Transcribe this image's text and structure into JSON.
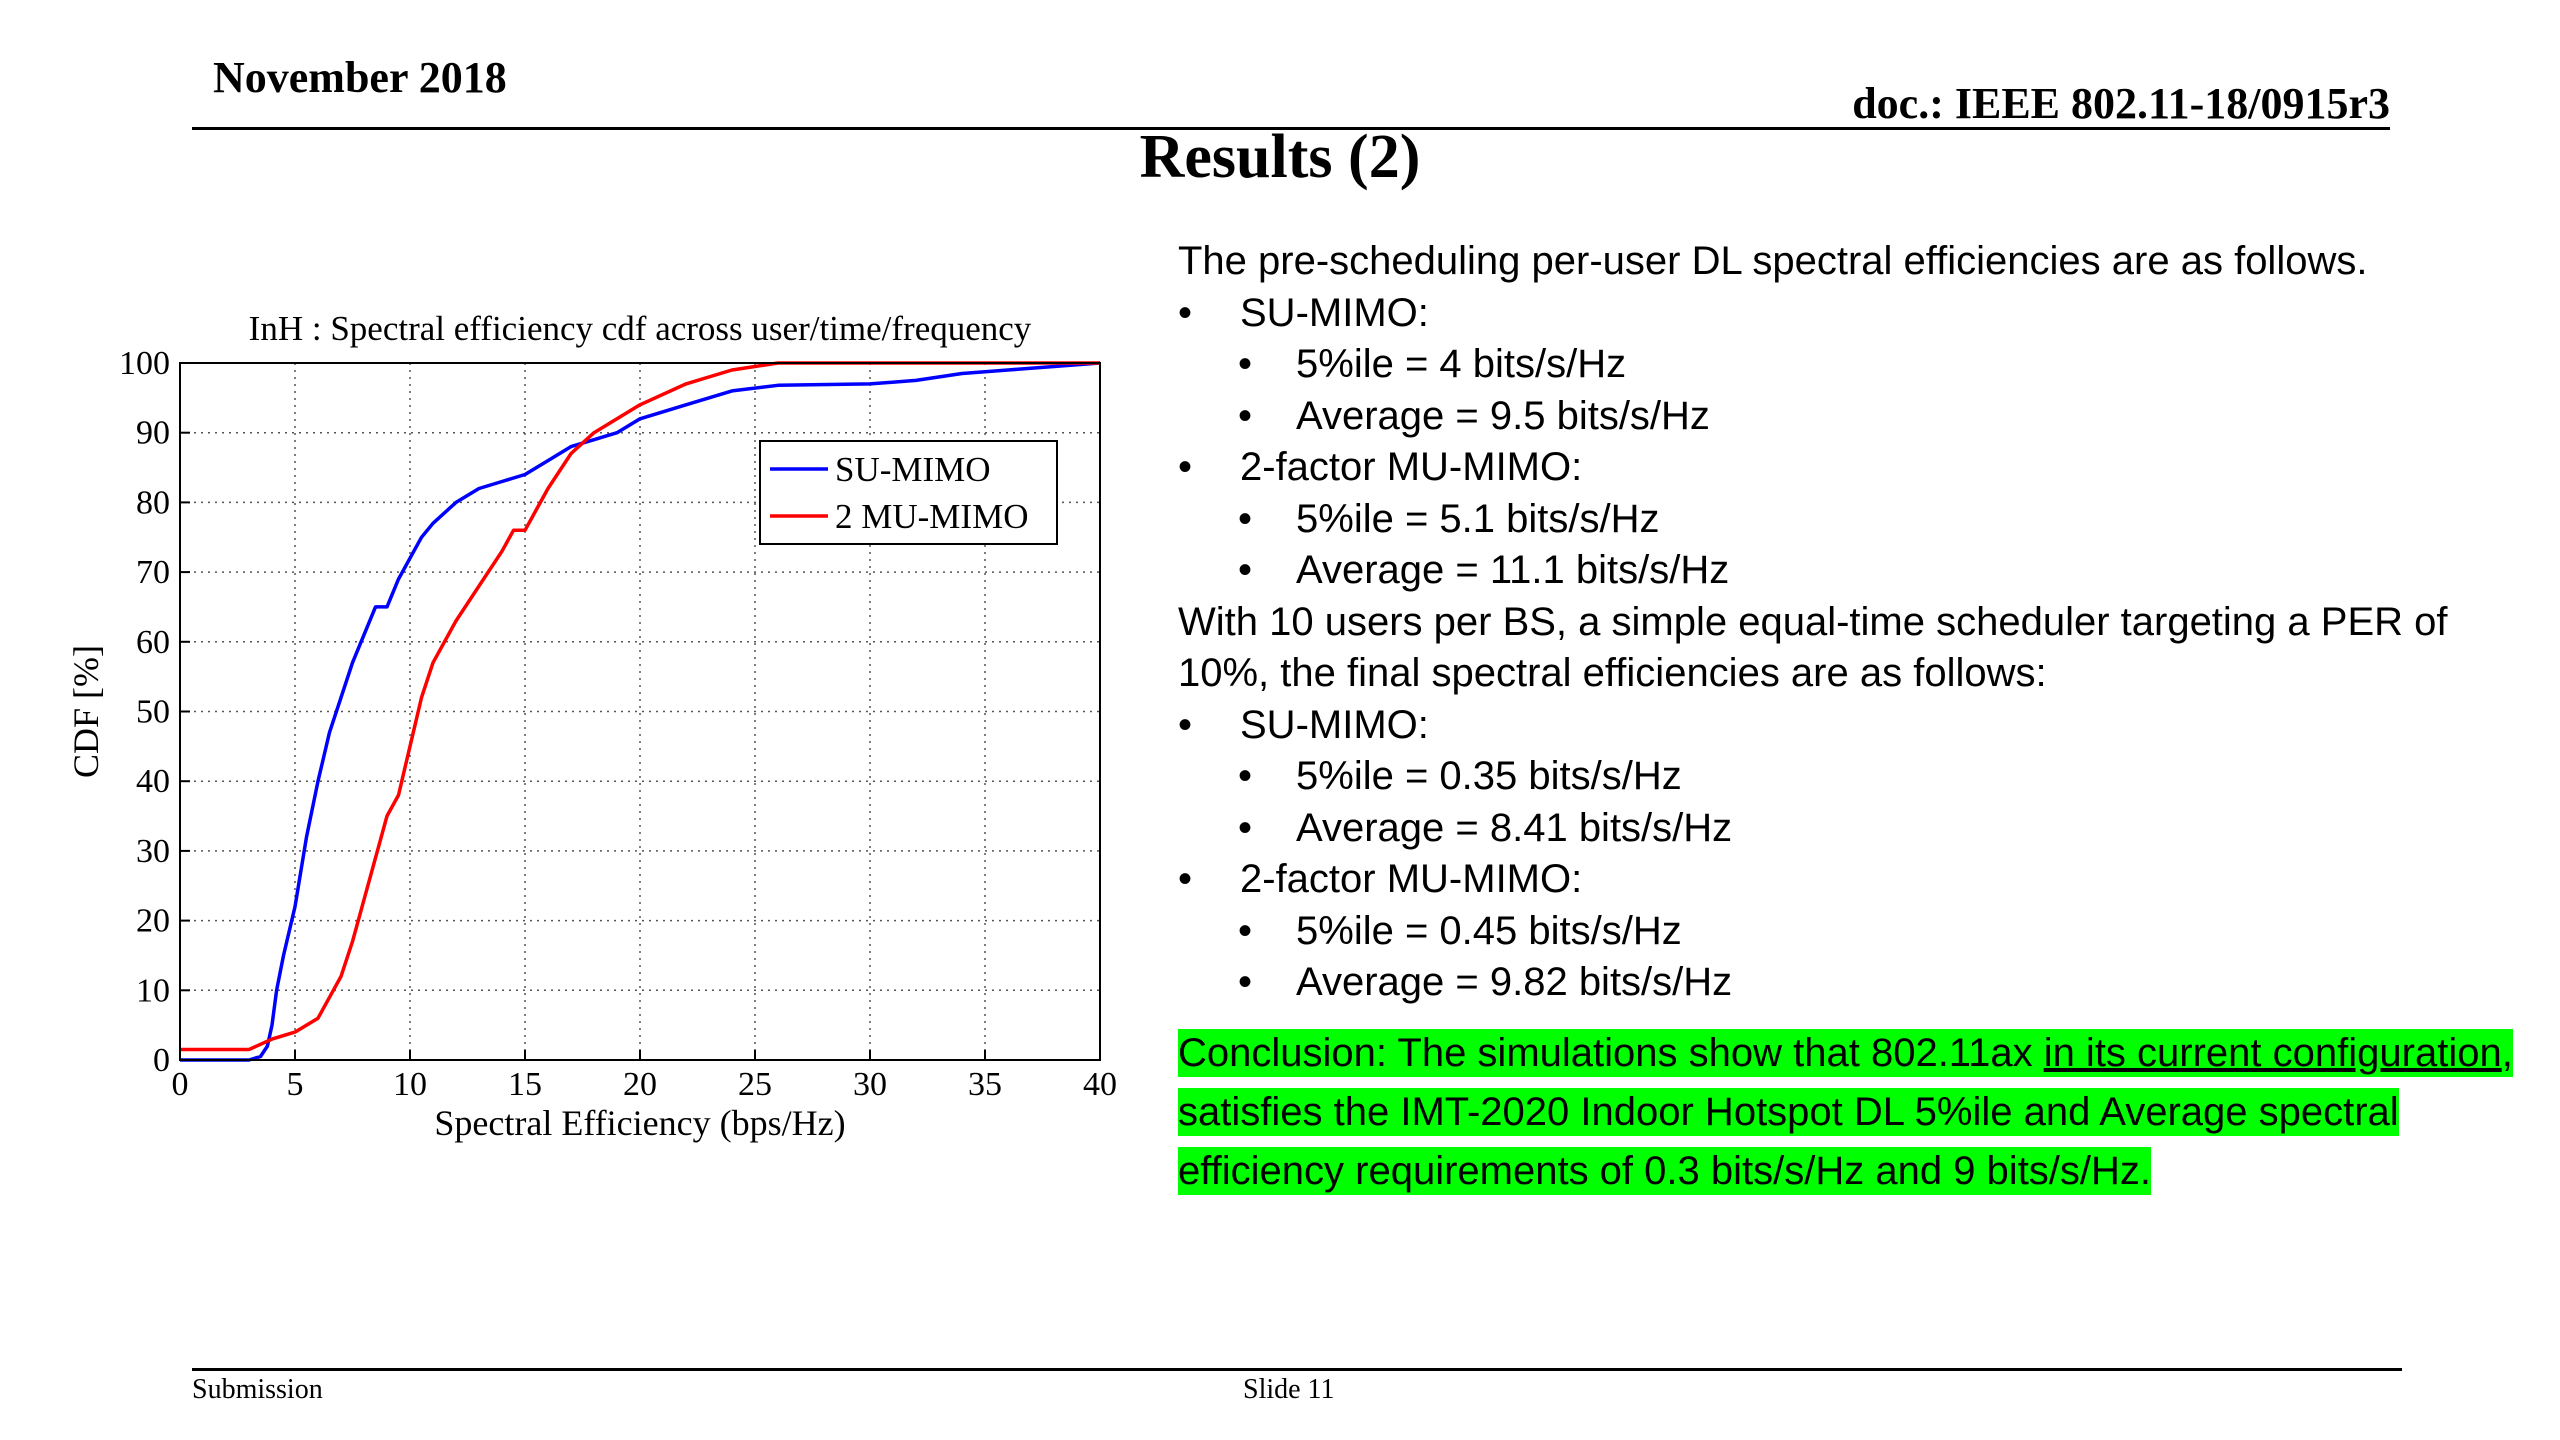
{
  "header": {
    "date": "November 2018",
    "doc_id": "doc.: IEEE 802.11-18/0915r3"
  },
  "slide_title": "Results (2)",
  "chart_data": {
    "type": "line",
    "title": "InH : Spectral efficiency cdf across user/time/frequency",
    "xlabel": "Spectral Efficiency (bps/Hz)",
    "ylabel": "CDF [%]",
    "xlim": [
      0,
      40
    ],
    "ylim": [
      0,
      100
    ],
    "xticks": [
      0,
      5,
      10,
      15,
      20,
      25,
      30,
      35,
      40
    ],
    "yticks": [
      0,
      10,
      20,
      30,
      40,
      50,
      60,
      70,
      80,
      90,
      100
    ],
    "grid": true,
    "legend_position": "upper-right",
    "series": [
      {
        "name": "SU-MIMO",
        "color": "#0000ff",
        "points": [
          [
            0,
            0
          ],
          [
            3,
            0
          ],
          [
            3.5,
            0.5
          ],
          [
            3.8,
            2
          ],
          [
            4,
            5
          ],
          [
            4.2,
            10
          ],
          [
            4.5,
            15
          ],
          [
            5,
            22
          ],
          [
            5.5,
            32
          ],
          [
            6,
            40
          ],
          [
            6.5,
            47
          ],
          [
            7,
            52
          ],
          [
            7.5,
            57
          ],
          [
            8,
            61
          ],
          [
            8.5,
            65
          ],
          [
            9,
            65
          ],
          [
            9.5,
            69
          ],
          [
            10,
            72
          ],
          [
            10.5,
            75
          ],
          [
            11,
            77
          ],
          [
            12,
            80
          ],
          [
            13,
            82
          ],
          [
            14,
            83
          ],
          [
            15,
            84
          ],
          [
            16,
            86
          ],
          [
            17,
            88
          ],
          [
            18,
            89
          ],
          [
            19,
            90
          ],
          [
            20,
            92
          ],
          [
            22,
            94
          ],
          [
            24,
            96
          ],
          [
            26,
            96.8
          ],
          [
            30,
            97
          ],
          [
            32,
            97.5
          ],
          [
            34,
            98.5
          ],
          [
            36,
            99
          ],
          [
            38,
            99.5
          ],
          [
            40,
            100
          ]
        ]
      },
      {
        "name": "2 MU-MIMO",
        "color": "#ff0000",
        "points": [
          [
            0,
            1.5
          ],
          [
            3,
            1.5
          ],
          [
            4,
            3
          ],
          [
            5,
            4
          ],
          [
            6,
            6
          ],
          [
            6.5,
            9
          ],
          [
            7,
            12
          ],
          [
            7.5,
            17
          ],
          [
            8,
            23
          ],
          [
            8.5,
            29
          ],
          [
            9,
            35
          ],
          [
            9.5,
            38
          ],
          [
            10,
            45
          ],
          [
            10.5,
            52
          ],
          [
            11,
            57
          ],
          [
            12,
            63
          ],
          [
            13,
            68
          ],
          [
            14,
            73
          ],
          [
            14.5,
            76
          ],
          [
            15,
            76
          ],
          [
            15.5,
            79
          ],
          [
            16,
            82
          ],
          [
            17,
            87
          ],
          [
            18,
            90
          ],
          [
            19,
            92
          ],
          [
            20,
            94
          ],
          [
            22,
            97
          ],
          [
            24,
            99
          ],
          [
            25,
            99.5
          ],
          [
            26,
            100
          ],
          [
            28,
            100
          ],
          [
            40,
            100
          ]
        ]
      }
    ]
  },
  "content": {
    "intro": "The pre-scheduling per-user DL spectral efficiencies are as follows.",
    "su_label_1": "SU-MIMO:",
    "su_5ile_1": "5%ile  = 4 bits/s/Hz",
    "su_avg_1": "Average = 9.5 bits/s/Hz",
    "mu_label_1": "2-factor MU-MIMO:",
    "mu_5ile_1": "5%ile = 5.1 bits/s/Hz",
    "mu_avg_1": "Average  = 11.1 bits/s/Hz",
    "second_intro": "With 10 users per BS, a simple equal-time scheduler targeting a PER of 10%, the final spectral efficiencies are as follows:",
    "su_label_2": "SU-MIMO:",
    "su_5ile_2": "5%ile  = 0.35 bits/s/Hz",
    "su_avg_2": "Average = 8.41 bits/s/Hz",
    "mu_label_2": "2-factor MU-MIMO:",
    "mu_5ile_2": "5%ile = 0.45 bits/s/Hz",
    "mu_avg_2": "Average  = 9.82 bits/s/Hz"
  },
  "conclusion": {
    "part1": "Conclusion: The simulations show that 802.11ax ",
    "underlined": "in its current configuration",
    "part2": ", satisfies the IMT-2020 Indoor Hotspot DL 5%ile and Average spectral efficiency requirements of 0.3 bits/s/Hz and 9 bits/s/Hz.",
    "highlight_color": "#00ff00"
  },
  "footer": {
    "left": "Submission",
    "center": "Slide 11"
  }
}
